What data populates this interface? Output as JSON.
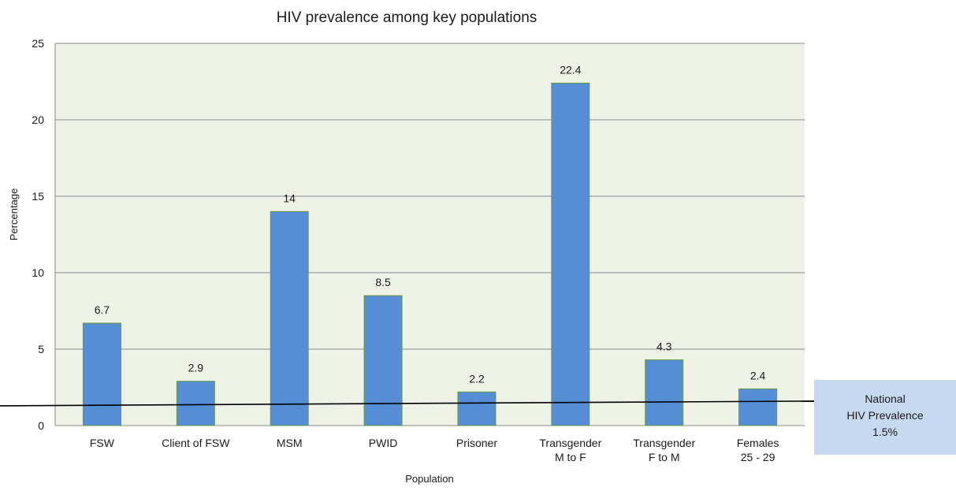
{
  "chart_data": {
    "type": "bar",
    "title": "HIV prevalence among key populations",
    "xlabel": "Population",
    "ylabel": "Percentage",
    "ylim": [
      0,
      25
    ],
    "yticks": [
      "0",
      "5",
      "10",
      "15",
      "20",
      "25"
    ],
    "categories": [
      [
        "FSW"
      ],
      [
        "Client of FSW"
      ],
      [
        "MSM"
      ],
      [
        "PWID"
      ],
      [
        "Prisoner"
      ],
      [
        "Transgender",
        "M to F"
      ],
      [
        "Transgender",
        "F to M"
      ],
      [
        "Females",
        "25 - 29"
      ]
    ],
    "values": [
      6.7,
      2.9,
      14,
      8.5,
      2.2,
      22.4,
      4.3,
      2.4
    ],
    "data_labels": [
      "6.7",
      "2.9",
      "14",
      "8.5",
      "2.2",
      "22.4",
      "4.3",
      "2.4"
    ],
    "reference_line": {
      "value": 1.5,
      "label": [
        "National",
        "HIV Prevalence",
        "1.5%"
      ]
    },
    "grid": true,
    "legend": "none",
    "colors": {
      "bar_fill": "#558ed5",
      "bar_stroke": "#6a9a3f",
      "plot_background": "#eef1e6",
      "gridline": "#8c8c8c",
      "reference_line": "#000000",
      "annotation_box": "#c6d9f1"
    }
  }
}
